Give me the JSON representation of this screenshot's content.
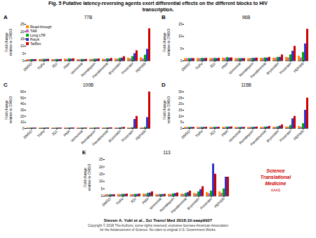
{
  "title": "Fig. 5 Putative latency-reversing agents exert differential effects on the different blocks to HIV\ntranscription.",
  "annotations": [
    "Steven A. Yukl et al., Sci Transl Med 2018;10:eaap9927",
    "Copyright © 2018 The Authors, some rights reserved; exclusive licensee American Association\nfor the Advancement of Science. No claim to original U.S. Government Works.",
    "Science\nTranslational\nMedicine",
    "AAAS"
  ],
  "chart_data": [
    {
      "type": "bar",
      "title": "77B",
      "annotations": [
        "A"
      ],
      "ylabel": "Fold change\nrelative to DMSO",
      "categories": [
        "DMSO",
        "TNFα",
        "JQ1",
        "PMA",
        "Vorinostat",
        "Romidepsin",
        "Panobinostat",
        "Bryostatin",
        "Prostratin",
        "PEP005"
      ],
      "series": [
        {
          "name": "Read-through",
          "color": "#FF8C00",
          "values": [
            1.0,
            1.1,
            1.0,
            1.3,
            1.0,
            1.1,
            1.2,
            1.4,
            2.0,
            2.2
          ]
        },
        {
          "name": "TAR",
          "color": "#CC66CC",
          "values": [
            1.0,
            1.1,
            1.0,
            1.2,
            1.0,
            1.1,
            1.1,
            1.3,
            1.5,
            1.5
          ]
        },
        {
          "name": "Long LTR",
          "color": "#00AA00",
          "values": [
            1.0,
            1.2,
            1.1,
            1.5,
            1.1,
            1.3,
            1.5,
            1.8,
            3.0,
            4.0
          ]
        },
        {
          "name": "PolyA",
          "color": "#3333CC",
          "values": [
            1.0,
            1.1,
            1.0,
            1.3,
            1.0,
            1.2,
            1.3,
            2.0,
            5.0,
            8.0
          ]
        },
        {
          "name": "TatRev",
          "color": "#CC0000",
          "values": [
            1.0,
            1.2,
            1.1,
            1.5,
            1.1,
            1.4,
            1.8,
            3.0,
            7.0,
            22.0
          ]
        }
      ],
      "ylim": [
        0,
        25
      ],
      "yticks": [
        0,
        5,
        10,
        15,
        20,
        25
      ],
      "legend": "upper left"
    },
    {
      "type": "bar",
      "title": "96B",
      "annotations": [
        "B"
      ],
      "ylabel": "Fold change\nrelative to DMSO",
      "categories": [
        "DMSO",
        "TNFα",
        "JQ1",
        "PMA",
        "Vorinostat",
        "Romidepsin",
        "Panobinostat",
        "Bryostatin",
        "Prostratin",
        "PEP005"
      ],
      "series": [
        {
          "name": "Read-through",
          "color": "#FF8C00",
          "values": [
            1.0,
            1.1,
            1.0,
            1.2,
            1.0,
            1.0,
            1.1,
            1.2,
            1.5,
            2.0
          ]
        },
        {
          "name": "TAR",
          "color": "#CC66CC",
          "values": [
            1.0,
            1.0,
            1.0,
            1.1,
            1.0,
            1.0,
            1.1,
            1.1,
            1.3,
            1.3
          ]
        },
        {
          "name": "Long LTR",
          "color": "#00AA00",
          "values": [
            1.0,
            1.1,
            1.1,
            1.4,
            1.0,
            1.1,
            1.3,
            1.5,
            2.5,
            3.5
          ]
        },
        {
          "name": "PolyA",
          "color": "#3333CC",
          "values": [
            1.0,
            1.0,
            1.0,
            1.2,
            1.0,
            1.1,
            1.2,
            1.5,
            4.0,
            7.0
          ]
        },
        {
          "name": "TatRev",
          "color": "#CC0000",
          "values": [
            1.0,
            1.1,
            1.1,
            1.3,
            1.0,
            1.2,
            1.5,
            2.5,
            6.0,
            13.0
          ]
        }
      ],
      "ylim": [
        0,
        15
      ],
      "yticks": [
        0,
        5,
        10,
        15
      ]
    },
    {
      "type": "bar",
      "title": "100B",
      "annotations": [
        "C"
      ],
      "ylabel": "Fold change\nrelative to DMSO",
      "categories": [
        "DMSO",
        "TNFα",
        "JQ1",
        "PMA",
        "Vorinostat",
        "Romidepsin",
        "Panobinostat",
        "Bryostatin",
        "Prostratin",
        "PEP005"
      ],
      "series": [
        {
          "name": "Read-through",
          "color": "#FF8C00",
          "values": [
            1.0,
            1.0,
            1.0,
            1.1,
            1.0,
            1.0,
            1.1,
            1.1,
            1.2,
            1.3
          ]
        },
        {
          "name": "TAR",
          "color": "#CC66CC",
          "values": [
            1.0,
            1.0,
            1.0,
            1.0,
            1.0,
            1.0,
            1.0,
            1.0,
            1.1,
            1.1
          ]
        },
        {
          "name": "Long LTR",
          "color": "#00AA00",
          "values": [
            1.0,
            1.0,
            1.0,
            1.1,
            1.0,
            1.1,
            1.2,
            1.3,
            1.5,
            2.0
          ]
        },
        {
          "name": "PolyA",
          "color": "#3333CC",
          "values": [
            1.0,
            1.0,
            1.0,
            1.1,
            1.0,
            1.1,
            1.2,
            1.5,
            15.0,
            18.0
          ]
        },
        {
          "name": "TatRev",
          "color": "#CC0000",
          "values": [
            1.0,
            1.0,
            1.0,
            1.1,
            1.0,
            1.1,
            1.3,
            2.0,
            20.0,
            60.0
          ]
        }
      ],
      "ylim": [
        0,
        60
      ],
      "yticks": [
        0,
        10,
        20,
        30,
        40,
        50,
        60
      ]
    },
    {
      "type": "bar",
      "title": "115B",
      "annotations": [
        "D"
      ],
      "ylabel": "Fold change\nrelative to DMSO",
      "categories": [
        "DMSO",
        "TNFα",
        "JQ1",
        "PMA",
        "Vorinostat",
        "Romidepsin",
        "Panobinostat",
        "Bryostatin",
        "Prostratin",
        "PEP005"
      ],
      "series": [
        {
          "name": "Read-through",
          "color": "#FF8C00",
          "values": [
            1.0,
            1.0,
            1.0,
            1.1,
            1.0,
            1.0,
            1.1,
            1.2,
            1.4,
            1.8
          ]
        },
        {
          "name": "TAR",
          "color": "#CC66CC",
          "values": [
            1.0,
            1.0,
            1.0,
            1.0,
            1.0,
            1.0,
            1.0,
            1.1,
            1.2,
            1.2
          ]
        },
        {
          "name": "Long LTR",
          "color": "#00AA00",
          "values": [
            1.0,
            1.0,
            1.1,
            1.3,
            1.0,
            1.1,
            1.3,
            1.5,
            2.5,
            4.0
          ]
        },
        {
          "name": "PolyA",
          "color": "#3333CC",
          "values": [
            1.0,
            1.0,
            1.0,
            1.2,
            1.0,
            1.1,
            1.3,
            2.0,
            8.0,
            15.0
          ]
        },
        {
          "name": "TatRev",
          "color": "#CC0000",
          "values": [
            1.0,
            1.1,
            1.1,
            1.4,
            1.0,
            1.3,
            1.8,
            3.0,
            10.0,
            25.0
          ]
        }
      ],
      "ylim": [
        0,
        30
      ],
      "yticks": [
        0,
        5,
        10,
        15,
        20,
        25,
        30
      ]
    },
    {
      "type": "bar",
      "title": "113",
      "annotations": [
        "E"
      ],
      "ylabel": "Fold change\nrelative to DMSO",
      "categories": [
        "DMSO",
        "TNFα",
        "JQ1",
        "PMA",
        "Vorinostat",
        "Romidepsin",
        "Panobinostat",
        "Bryostatin",
        "Prostratin",
        "PEP005"
      ],
      "series": [
        {
          "name": "Read-through",
          "color": "#FF8C00",
          "values": [
            1.0,
            1.2,
            1.1,
            1.5,
            1.1,
            1.3,
            1.5,
            2.0,
            2.5,
            3.0
          ]
        },
        {
          "name": "TAR",
          "color": "#CC66CC",
          "values": [
            1.0,
            1.1,
            1.1,
            1.3,
            1.1,
            1.2,
            1.3,
            1.5,
            1.8,
            2.0
          ]
        },
        {
          "name": "Long LTR",
          "color": "#00AA00",
          "values": [
            1.0,
            1.3,
            1.3,
            2.0,
            1.2,
            1.6,
            2.0,
            3.0,
            3.5,
            5.0
          ]
        },
        {
          "name": "PolyA",
          "color": "#3333CC",
          "values": [
            1.0,
            1.2,
            1.2,
            2.2,
            1.1,
            1.8,
            2.5,
            4.5,
            22.0,
            13.0
          ]
        },
        {
          "name": "TatRev",
          "color": "#CC0000",
          "values": [
            1.0,
            1.5,
            1.5,
            3.0,
            1.3,
            2.2,
            3.5,
            6.5,
            15.0,
            13.0
          ]
        }
      ],
      "ylim": [
        0,
        25
      ],
      "yticks": [
        0,
        5,
        10,
        15,
        20,
        25
      ]
    }
  ]
}
